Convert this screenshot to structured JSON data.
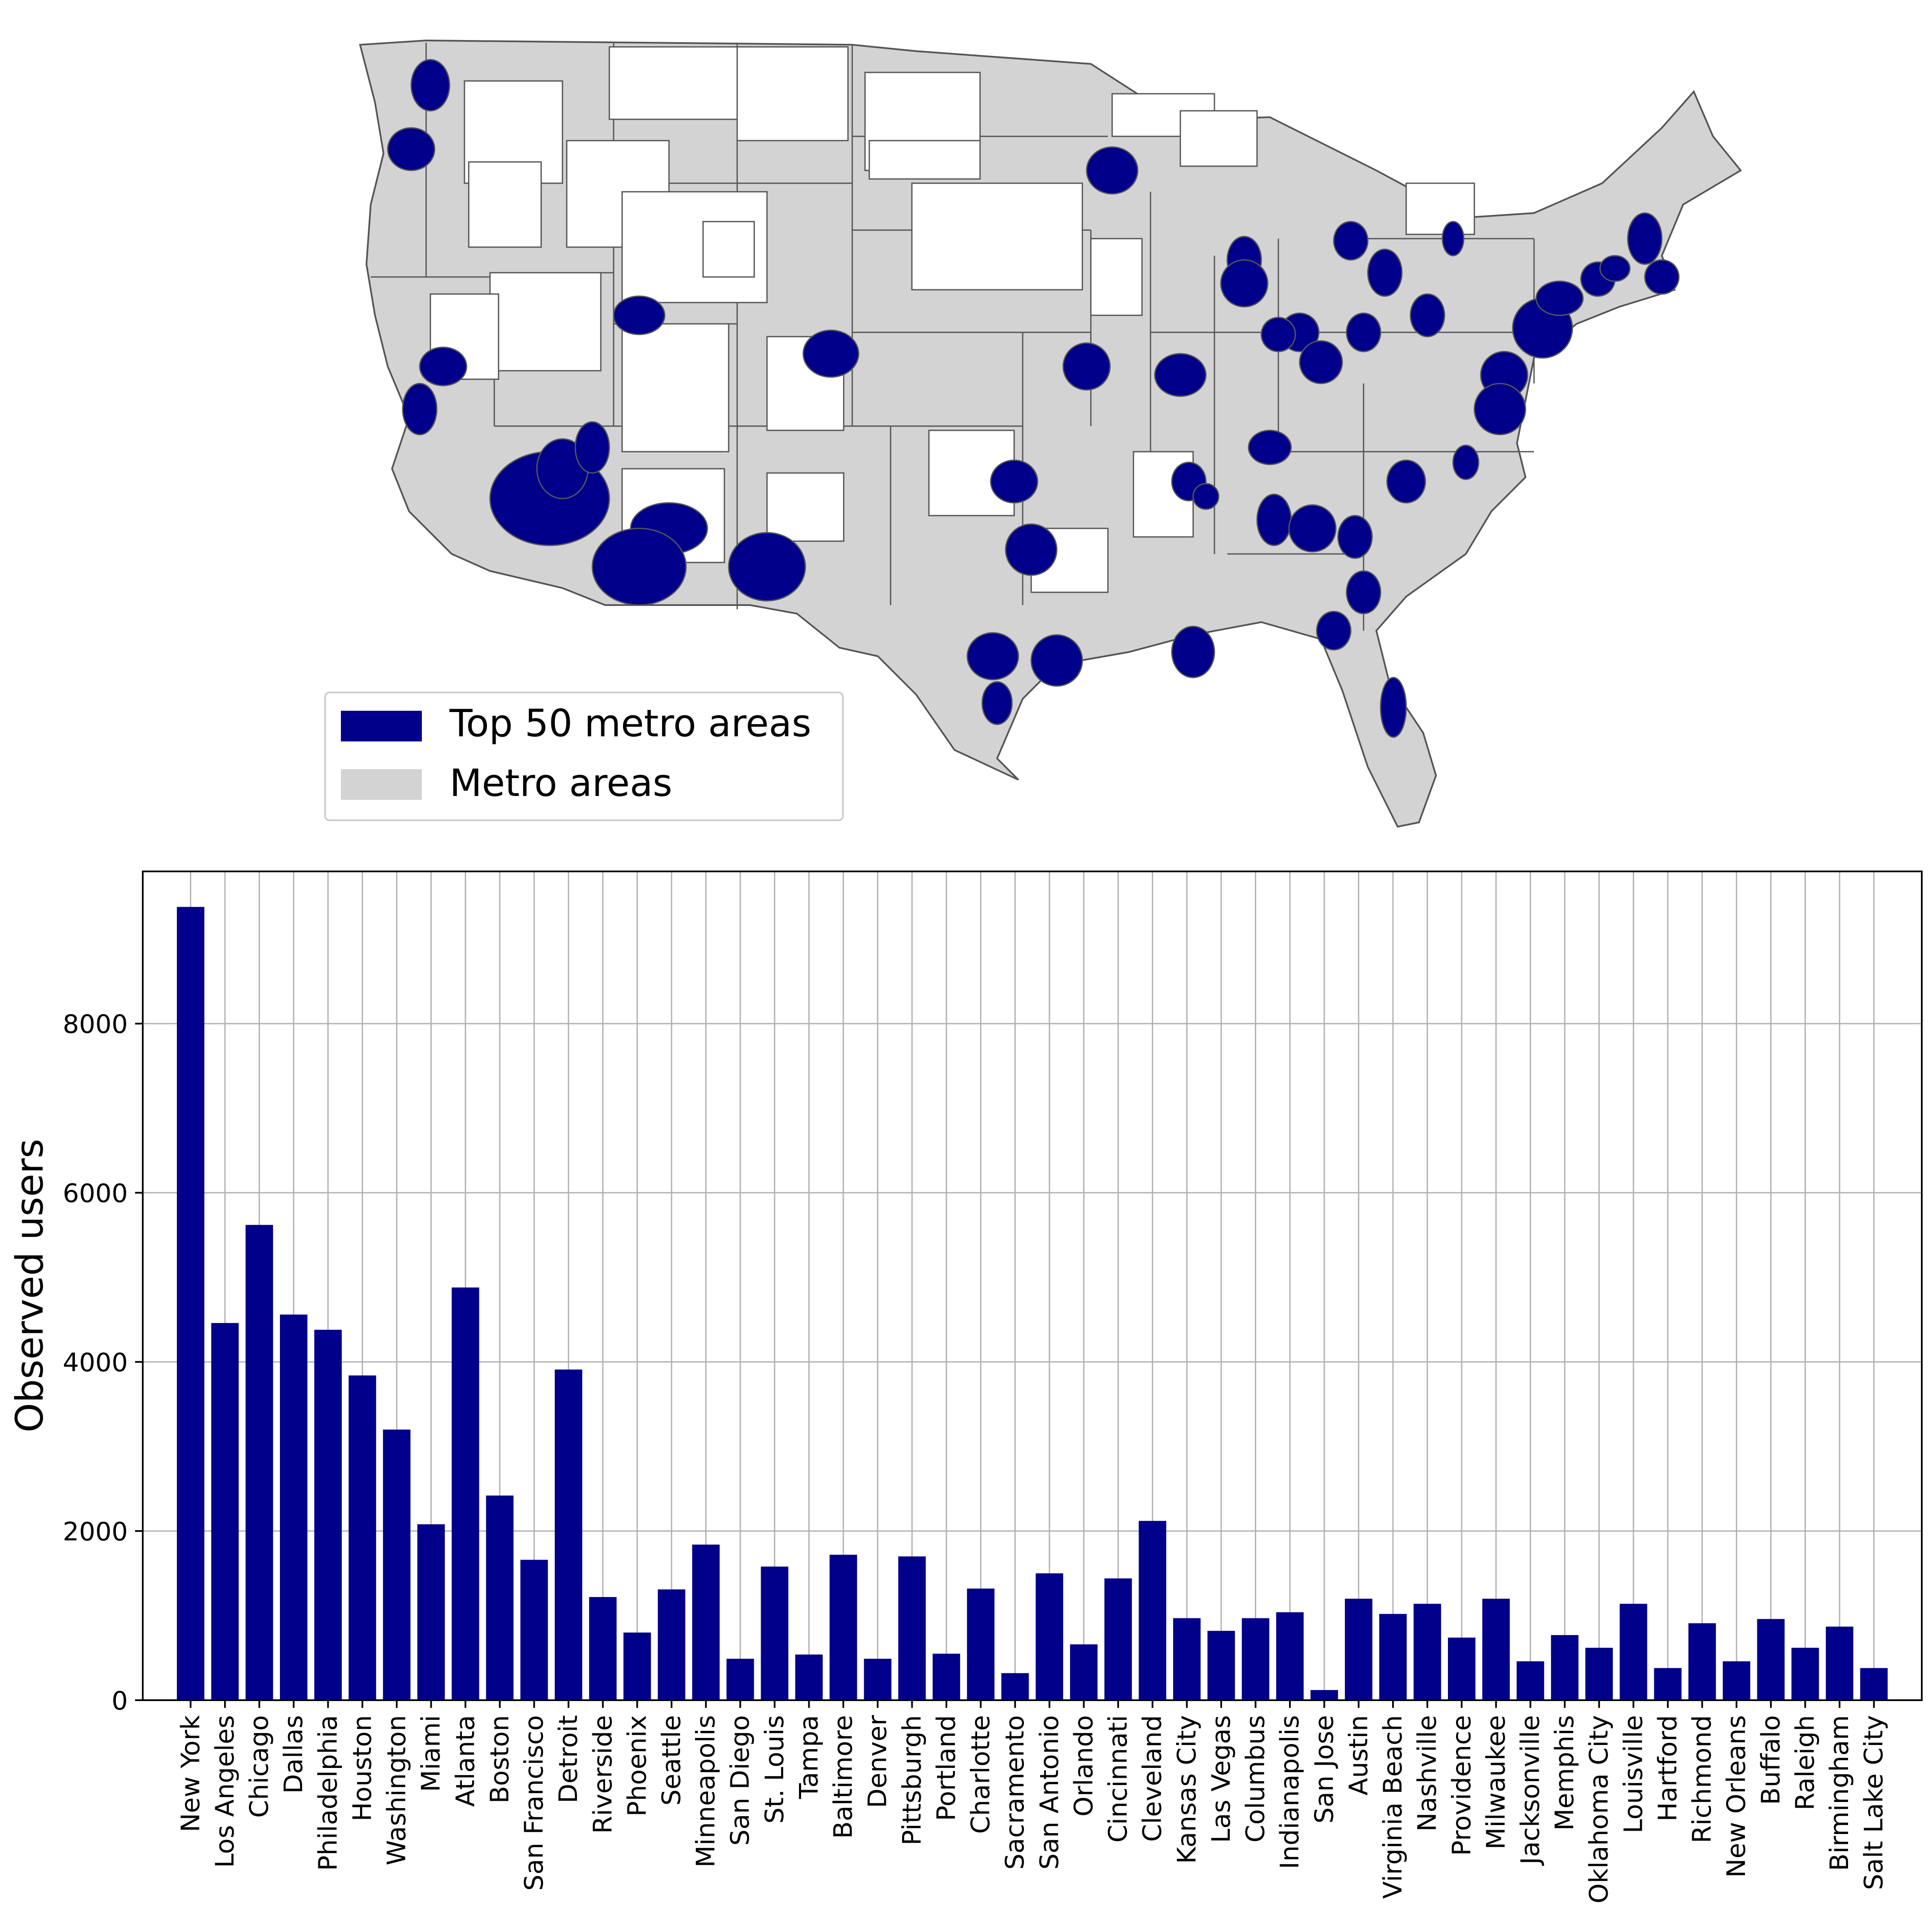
{
  "map": {
    "legend": [
      {
        "label": "Top 50 metro areas",
        "color": "#00008b"
      },
      {
        "label": "Metro areas",
        "color": "#d3d3d3"
      }
    ],
    "outline_color": "#555555",
    "background_region_color": "#ffffff"
  },
  "chart_data": {
    "type": "bar",
    "title": "",
    "xlabel": "",
    "ylabel": "Observed users",
    "ylim": [
      0,
      9800
    ],
    "yticks": [
      0,
      2000,
      4000,
      6000,
      8000
    ],
    "grid": true,
    "bar_color": "#00008b",
    "categories": [
      "New York",
      "Los Angeles",
      "Chicago",
      "Dallas",
      "Philadelphia",
      "Houston",
      "Washington",
      "Miami",
      "Atlanta",
      "Boston",
      "San Francisco",
      "Detroit",
      "Riverside",
      "Phoenix",
      "Seattle",
      "Minneapolis",
      "San Diego",
      "St. Louis",
      "Tampa",
      "Baltimore",
      "Denver",
      "Pittsburgh",
      "Portland",
      "Charlotte",
      "Sacramento",
      "San Antonio",
      "Orlando",
      "Cincinnati",
      "Cleveland",
      "Kansas City",
      "Las Vegas",
      "Columbus",
      "Indianapolis",
      "San Jose",
      "Austin",
      "Virginia Beach",
      "Nashville",
      "Providence",
      "Milwaukee",
      "Jacksonville",
      "Memphis",
      "Oklahoma City",
      "Louisville",
      "Hartford",
      "Richmond",
      "New Orleans",
      "Buffalo",
      "Raleigh",
      "Birmingham",
      "Salt Lake City"
    ],
    "values": [
      9380,
      4460,
      5620,
      4560,
      4380,
      3840,
      3200,
      2080,
      4880,
      2420,
      1660,
      3910,
      1220,
      800,
      1310,
      1840,
      490,
      1580,
      540,
      1720,
      490,
      1700,
      550,
      1320,
      320,
      1500,
      660,
      1440,
      2120,
      970,
      820,
      970,
      1040,
      120,
      1200,
      1020,
      1140,
      740,
      1200,
      460,
      770,
      620,
      1140,
      380,
      910,
      460,
      960,
      620,
      870,
      380
    ]
  }
}
